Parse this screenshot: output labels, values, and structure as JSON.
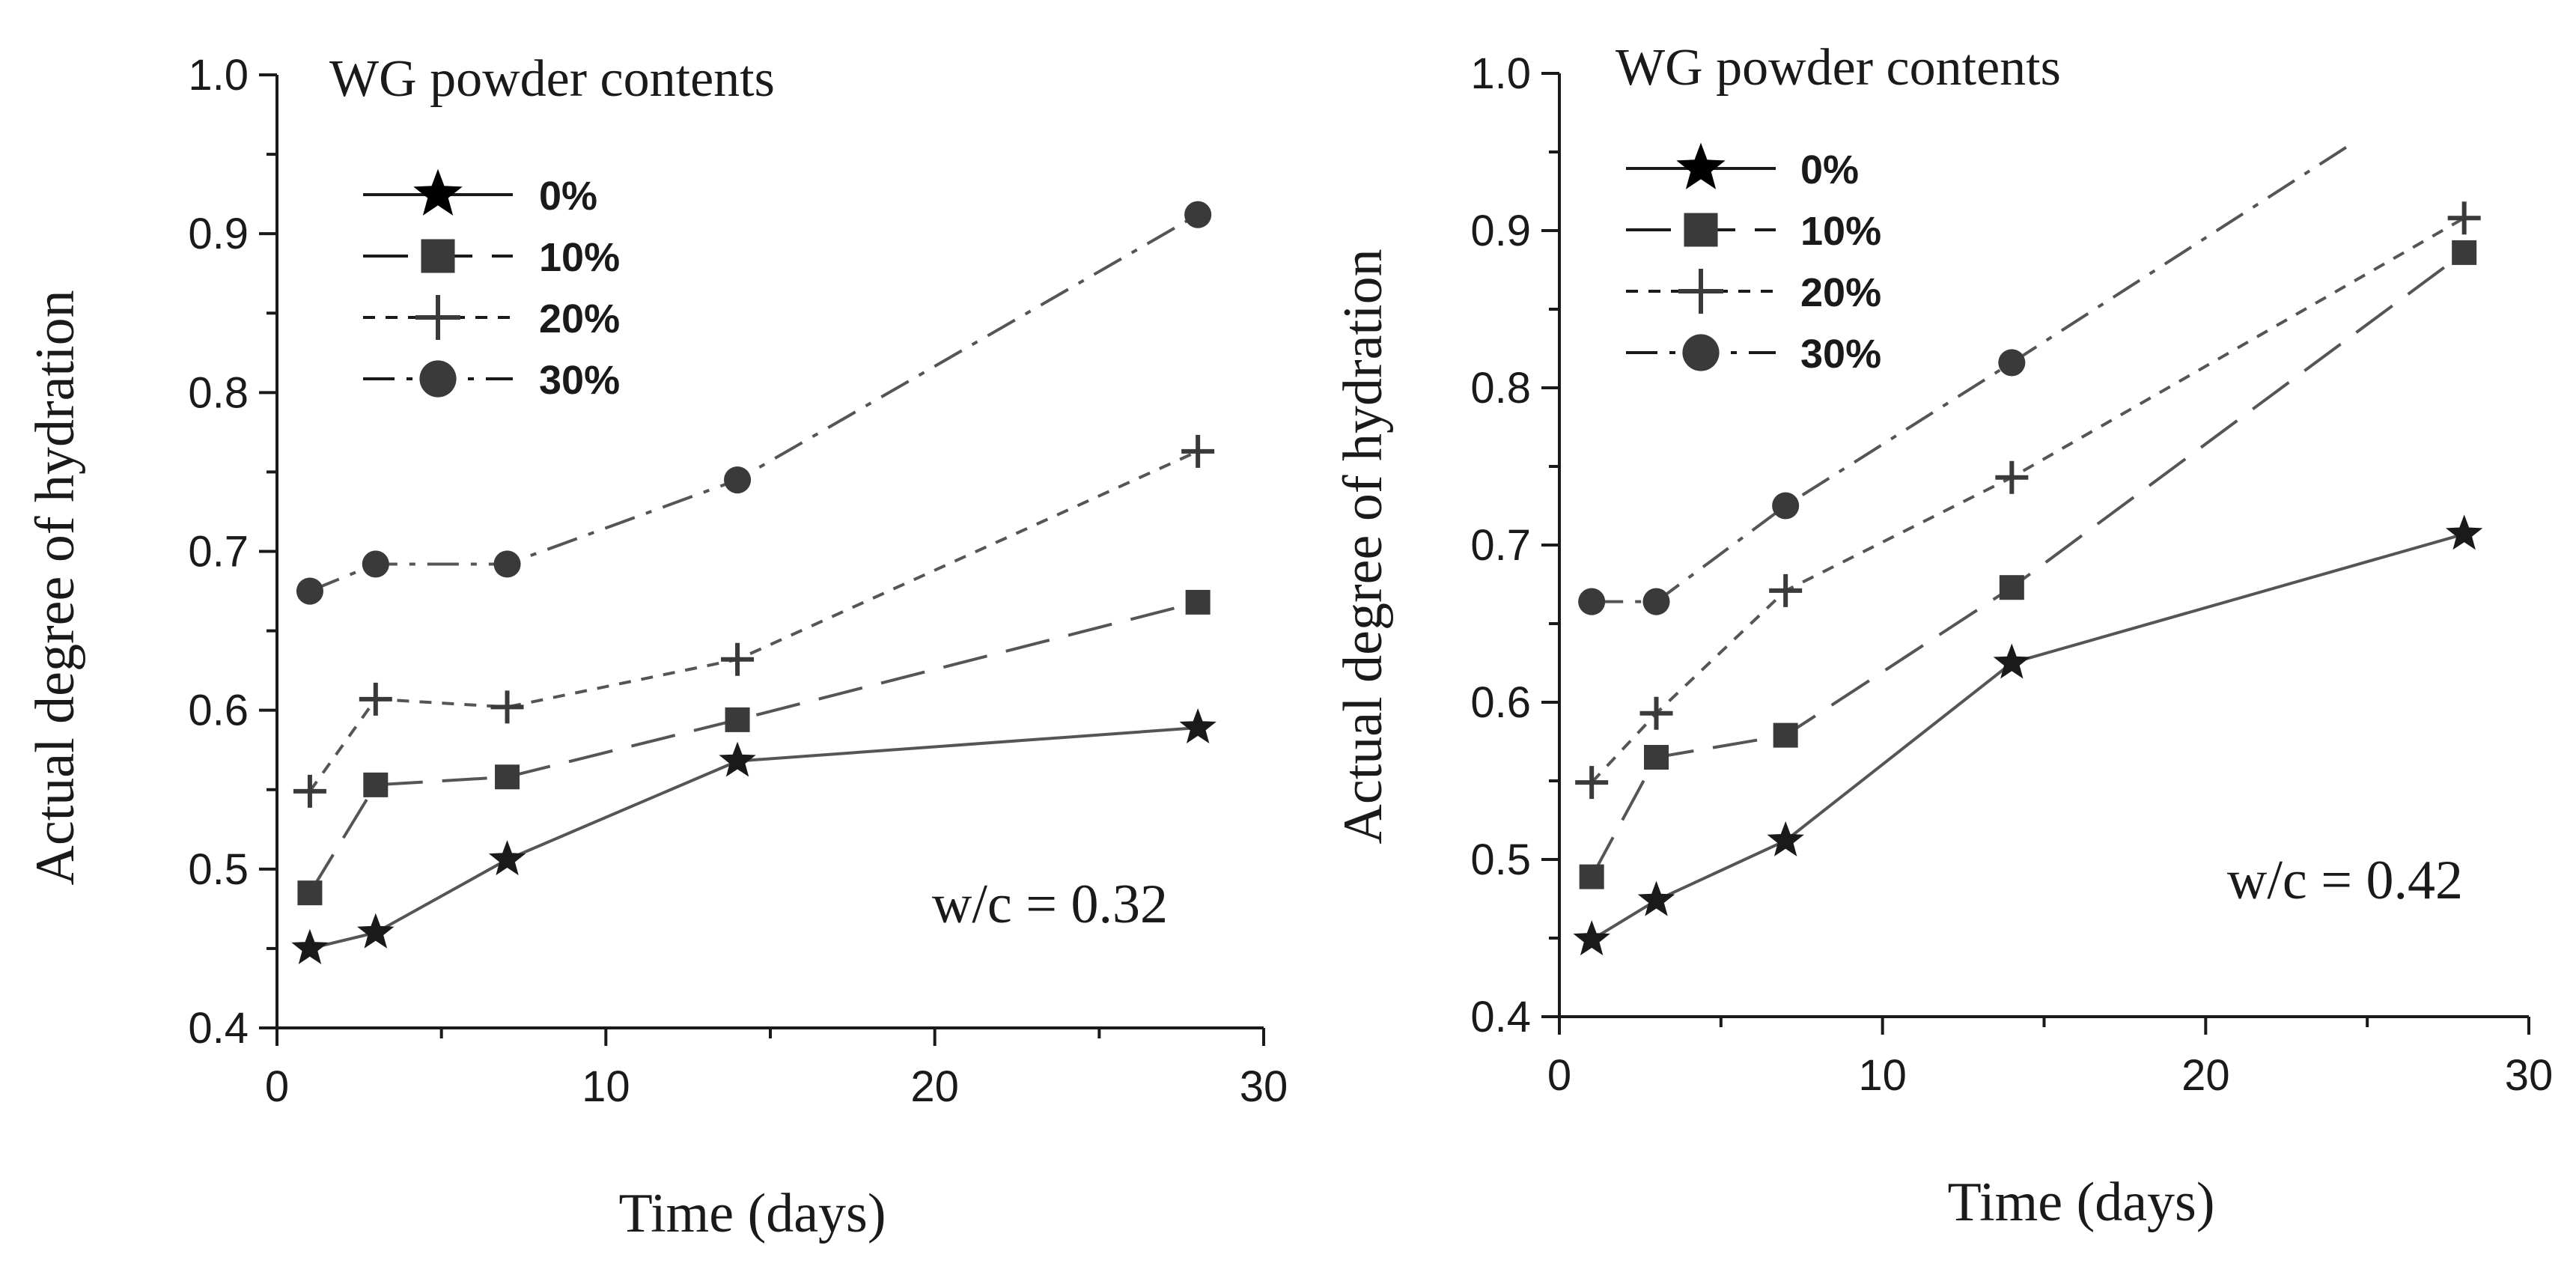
{
  "chart_data": [
    {
      "type": "line",
      "id": "left",
      "xlabel": "Time (days)",
      "ylabel": "Actual degree of hydration",
      "xlim": [
        0,
        30
      ],
      "ylim": [
        0.4,
        1.0
      ],
      "xticks": [
        0,
        10,
        20,
        30
      ],
      "xtick_labels": [
        "0",
        "10",
        "20",
        "30"
      ],
      "yticks": [
        0.4,
        0.5,
        0.6,
        0.7,
        0.8,
        0.9,
        1.0
      ],
      "ytick_labels": [
        "0.4",
        "0.5",
        "0.6",
        "0.7",
        "0.8",
        "0.9",
        "1.0"
      ],
      "legend_title": "WG powder contents",
      "legend_position": "top-left",
      "annotation": "w/c = 0.32",
      "series": [
        {
          "name": "0%",
          "marker": "star",
          "dash": "solid",
          "x": [
            1,
            3,
            7,
            14,
            28
          ],
          "y": [
            0.45,
            0.46,
            0.506,
            0.568,
            0.589
          ]
        },
        {
          "name": "10%",
          "marker": "square",
          "dash": "long-dash",
          "x": [
            1,
            3,
            7,
            14,
            28
          ],
          "y": [
            0.485,
            0.553,
            0.558,
            0.594,
            0.668
          ]
        },
        {
          "name": "20%",
          "marker": "plus",
          "dash": "short-dash",
          "x": [
            1,
            3,
            7,
            14,
            28
          ],
          "y": [
            0.549,
            0.607,
            0.602,
            0.632,
            0.763
          ]
        },
        {
          "name": "30%",
          "marker": "circle",
          "dash": "dash-dot",
          "x": [
            1,
            3,
            7,
            14,
            28
          ],
          "y": [
            0.675,
            0.692,
            0.692,
            0.745,
            0.912
          ]
        }
      ]
    },
    {
      "type": "line",
      "id": "right",
      "xlabel": "Time (days)",
      "ylabel": "Actual degree of hydration",
      "xlim": [
        0,
        30
      ],
      "ylim": [
        0.4,
        1.0
      ],
      "xticks": [
        0,
        10,
        20,
        30
      ],
      "xtick_labels": [
        "0",
        "10",
        "20",
        "30"
      ],
      "yticks": [
        0.4,
        0.5,
        0.6,
        0.7,
        0.8,
        0.9,
        1.0
      ],
      "ytick_labels": [
        "0.4",
        "0.5",
        "0.6",
        "0.7",
        "0.8",
        "0.9",
        "1.0"
      ],
      "legend_title": "WG powder contents",
      "legend_position": "top-left",
      "annotation": "w/c = 0.42",
      "series": [
        {
          "name": "0%",
          "marker": "star",
          "dash": "solid",
          "x": [
            1,
            3,
            7,
            14,
            28
          ],
          "y": [
            0.449,
            0.474,
            0.512,
            0.625,
            0.707
          ]
        },
        {
          "name": "10%",
          "marker": "square",
          "dash": "long-dash",
          "x": [
            1,
            3,
            7,
            14,
            28
          ],
          "y": [
            0.489,
            0.565,
            0.579,
            0.673,
            0.886
          ]
        },
        {
          "name": "20%",
          "marker": "plus",
          "dash": "short-dash",
          "x": [
            1,
            3,
            7,
            14,
            28
          ],
          "y": [
            0.549,
            0.593,
            0.671,
            0.743,
            0.908
          ]
        },
        {
          "name": "30%",
          "marker": "circle",
          "dash": "dash-dot",
          "x": [
            1,
            3,
            7,
            14
          ],
          "y": [
            0.664,
            0.664,
            0.725,
            0.816
          ],
          "line_extends_to": {
            "x": 24.5,
            "y": 0.955
          }
        }
      ]
    }
  ]
}
